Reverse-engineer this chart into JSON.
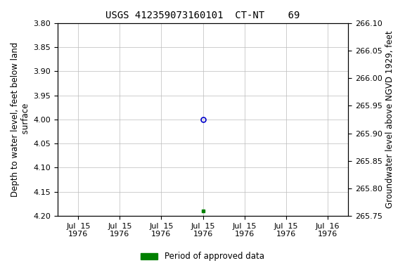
{
  "title": "USGS 412359073160101  CT-NT    69",
  "ylabel_left": "Depth to water level, feet below land\n surface",
  "ylabel_right": "Groundwater level above NGVD 1929, feet",
  "ylim_left": [
    4.2,
    3.8
  ],
  "ylim_right": [
    265.75,
    266.1
  ],
  "yticks_left": [
    3.8,
    3.85,
    3.9,
    3.95,
    4.0,
    4.05,
    4.1,
    4.15,
    4.2
  ],
  "yticks_right": [
    265.75,
    265.8,
    265.85,
    265.9,
    265.95,
    266.0,
    266.05,
    266.1
  ],
  "open_circle_value": 4.0,
  "green_square_value": 4.19,
  "background_color": "#ffffff",
  "grid_color": "#bbbbbb",
  "open_circle_color": "#0000cc",
  "green_square_color": "#008000",
  "legend_label": "Period of approved data",
  "legend_color": "#008000",
  "title_fontsize": 10,
  "label_fontsize": 8.5,
  "tick_fontsize": 8.0
}
